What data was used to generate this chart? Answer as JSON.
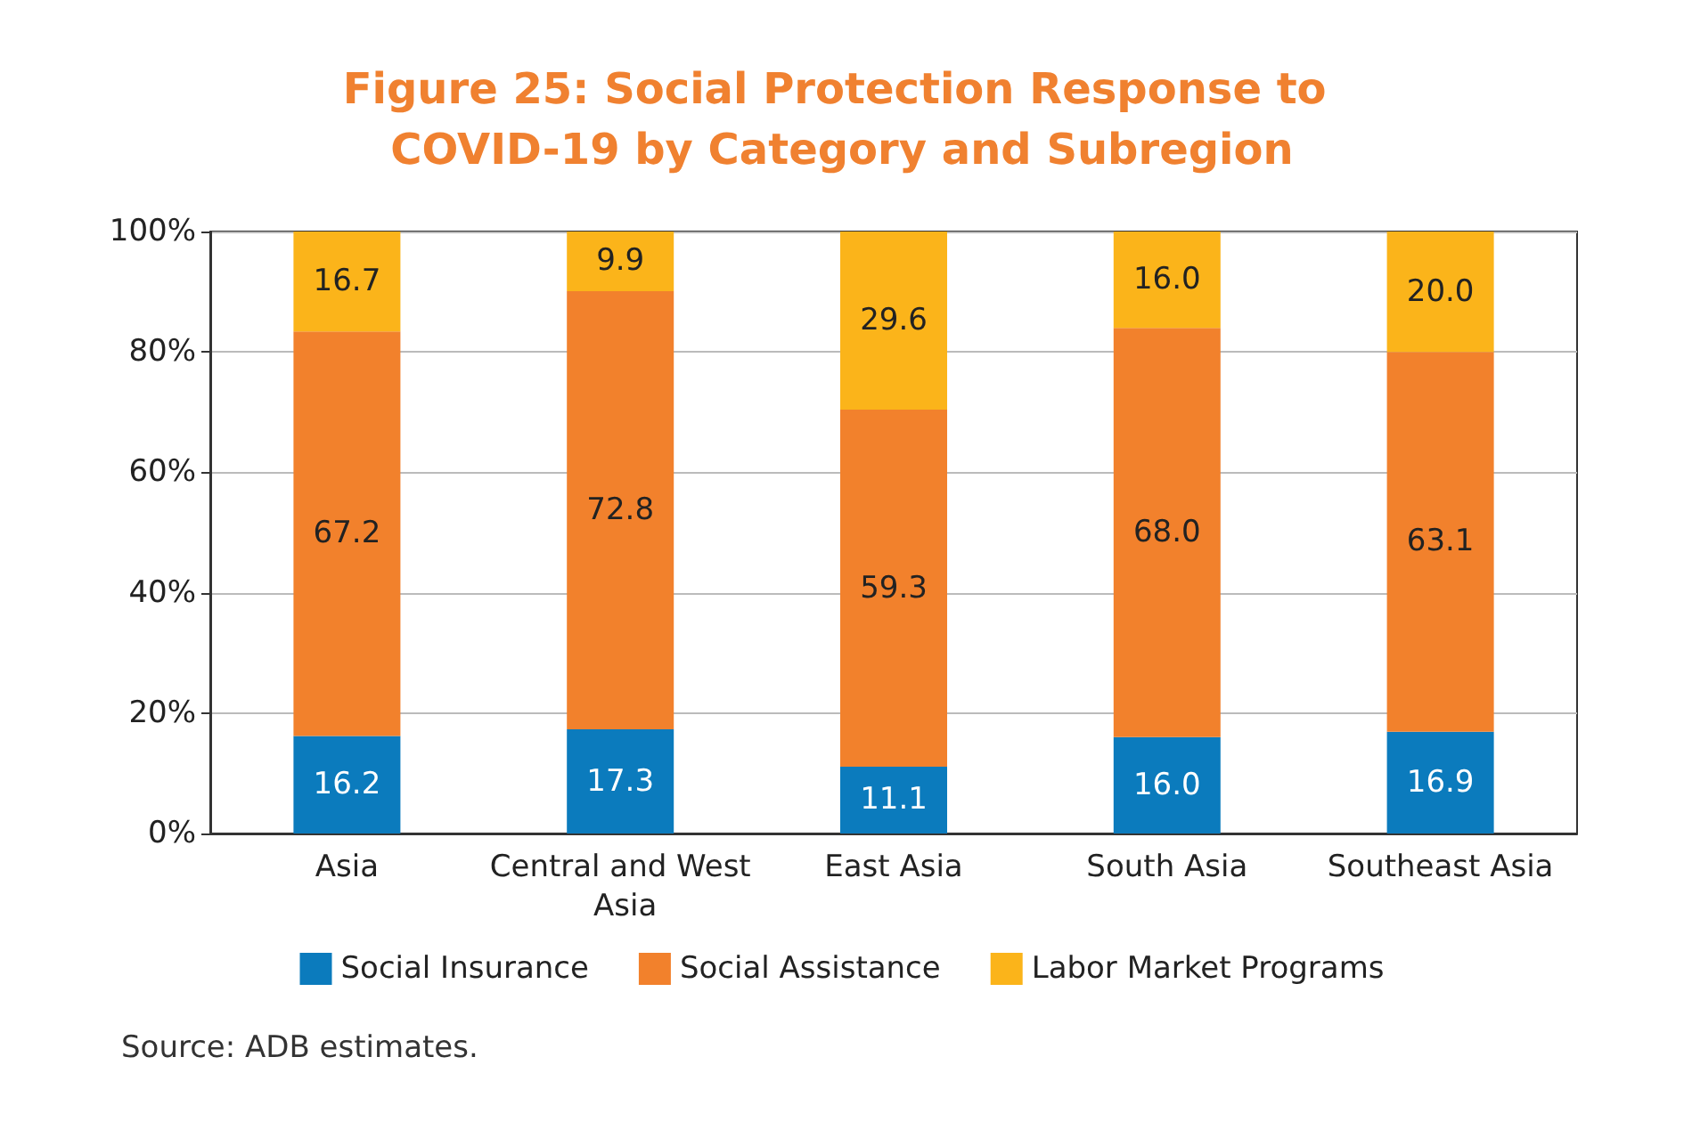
{
  "chart_data": {
    "type": "bar",
    "stacked": true,
    "title": "Figure 25: Social Protection Response to COVID-19 by Category and Subregion",
    "categories": [
      "Asia",
      "Central and West Asia",
      "East Asia",
      "South Asia",
      "Southeast Asia"
    ],
    "series": [
      {
        "name": "Social Insurance",
        "color": "#0b7bbd",
        "values": [
          16.2,
          17.3,
          11.1,
          16.0,
          16.9
        ],
        "value_labels": [
          "16.2",
          "17.3",
          "11.1",
          "16.0",
          "16.9"
        ]
      },
      {
        "name": "Social Assistance",
        "color": "#f2812c",
        "values": [
          67.2,
          72.8,
          59.3,
          68.0,
          63.1
        ],
        "value_labels": [
          "67.2",
          "72.8",
          "59.3",
          "68.0",
          "63.1"
        ]
      },
      {
        "name": "Labor Market Programs",
        "color": "#fbb41a",
        "values": [
          16.7,
          9.9,
          29.6,
          16.0,
          20.0
        ],
        "value_labels": [
          "16.7",
          "9.9",
          "29.6",
          "16.0",
          "20.0"
        ]
      }
    ],
    "ylim": [
      0,
      100
    ],
    "yticks": [
      {
        "value": 0,
        "label": "0%"
      },
      {
        "value": 20,
        "label": "20%"
      },
      {
        "value": 40,
        "label": "40%"
      },
      {
        "value": 60,
        "label": "60%"
      },
      {
        "value": 80,
        "label": "80%"
      },
      {
        "value": 100,
        "label": "100%"
      }
    ],
    "grid": "y",
    "legend": "bottom",
    "annotations": [
      "Source: ADB estimates."
    ]
  }
}
